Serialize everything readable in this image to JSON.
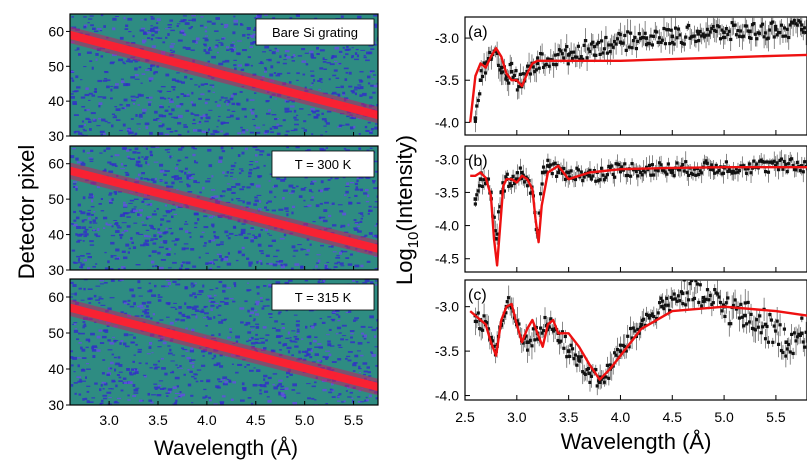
{
  "figure": {
    "left_ylabel": "Detector pixel",
    "left_xlabel": "Wavelength (Å)",
    "right_ylabel_main": "Log",
    "right_ylabel_sub": "10",
    "right_ylabel_rest": "(Intensity)",
    "right_xlabel": "Wavelength (Å)"
  },
  "colors": {
    "map_background": "#2e8c82",
    "map_noise": "#3030c8",
    "ridge": "#ff2030",
    "fit": "#ee1111",
    "data": "#111111"
  },
  "chart_data": [
    {
      "type": "heatmap",
      "label": "Bare Si grating",
      "xlim": [
        2.6,
        5.75
      ],
      "ylim": [
        30,
        65
      ],
      "xticks": [
        "3.0",
        "3.5",
        "4.0",
        "4.5",
        "5.0",
        "5.5"
      ],
      "yticks": [
        "30",
        "40",
        "50",
        "60"
      ],
      "ridge_x": [
        2.6,
        5.75
      ],
      "ridge_y": [
        59,
        36
      ]
    },
    {
      "type": "heatmap",
      "label": "T = 300 K",
      "xlim": [
        2.6,
        5.75
      ],
      "ylim": [
        30,
        65
      ],
      "xticks": [
        "3.0",
        "3.5",
        "4.0",
        "4.5",
        "5.0",
        "5.5"
      ],
      "yticks": [
        "30",
        "40",
        "50",
        "60"
      ],
      "ridge_x": [
        2.6,
        5.75
      ],
      "ridge_y": [
        58,
        36
      ]
    },
    {
      "type": "heatmap",
      "label": "T = 315 K",
      "xlim": [
        2.6,
        5.75
      ],
      "ylim": [
        30,
        65
      ],
      "xticks": [
        "3.0",
        "3.5",
        "4.0",
        "4.5",
        "5.0",
        "5.5"
      ],
      "yticks": [
        "30",
        "40",
        "50",
        "60"
      ],
      "ridge_x": [
        2.6,
        5.75
      ],
      "ridge_y": [
        57,
        35
      ]
    },
    {
      "type": "scatter",
      "label": "(a)",
      "xlim": [
        2.5,
        5.8
      ],
      "ylim": [
        -4.15,
        -2.75
      ],
      "yticks": [
        "-3.0",
        "-3.5",
        "-4.0"
      ],
      "data_x": [
        2.6,
        2.65,
        2.7,
        2.75,
        2.8,
        2.85,
        2.9,
        2.95,
        3.0,
        3.05,
        3.1,
        3.2,
        3.3,
        3.5,
        3.75,
        4.0,
        4.25,
        4.5,
        4.75,
        5.0,
        5.25,
        5.5,
        5.75
      ],
      "data_y": [
        -3.95,
        -3.5,
        -3.3,
        -3.25,
        -3.15,
        -3.35,
        -3.45,
        -3.4,
        -3.5,
        -3.55,
        -3.4,
        -3.3,
        -3.25,
        -3.2,
        -3.1,
        -3.05,
        -3.0,
        -2.98,
        -2.95,
        -2.93,
        -2.92,
        -2.9,
        -2.9
      ],
      "fit_x": [
        2.55,
        2.6,
        2.65,
        2.7,
        2.75,
        2.8,
        2.85,
        2.9,
        2.95,
        3.0,
        3.05,
        3.1,
        3.15,
        3.2,
        3.3,
        3.5,
        4.0,
        4.5,
        5.0,
        5.5,
        5.8
      ],
      "fit_y": [
        -4.0,
        -3.45,
        -3.3,
        -3.35,
        -3.22,
        -3.12,
        -3.22,
        -3.42,
        -3.5,
        -3.5,
        -3.57,
        -3.42,
        -3.3,
        -3.27,
        -3.27,
        -3.27,
        -3.27,
        -3.25,
        -3.23,
        -3.21,
        -3.2
      ]
    },
    {
      "type": "scatter",
      "label": "(b)",
      "xlim": [
        2.5,
        5.8
      ],
      "ylim": [
        -4.7,
        -2.8
      ],
      "yticks": [
        "-3.0",
        "-3.5",
        "-4.0",
        "-4.5"
      ],
      "data_x": [
        2.6,
        2.65,
        2.7,
        2.75,
        2.8,
        2.85,
        2.9,
        2.95,
        3.0,
        3.05,
        3.1,
        3.15,
        3.2,
        3.25,
        3.3,
        3.4,
        3.5,
        3.7,
        4.0,
        4.5,
        5.0,
        5.5,
        5.75
      ],
      "data_y": [
        -3.6,
        -3.3,
        -3.3,
        -3.5,
        -4.2,
        -3.5,
        -3.3,
        -3.3,
        -3.3,
        -3.2,
        -3.3,
        -3.5,
        -4.1,
        -3.2,
        -3.1,
        -3.2,
        -3.2,
        -3.25,
        -3.15,
        -3.15,
        -3.12,
        -3.1,
        -3.1
      ],
      "fit_x": [
        2.55,
        2.6,
        2.65,
        2.7,
        2.75,
        2.78,
        2.81,
        2.84,
        2.87,
        2.9,
        2.95,
        3.0,
        3.05,
        3.1,
        3.15,
        3.18,
        3.21,
        3.24,
        3.3,
        3.4,
        3.5,
        3.6,
        3.7,
        4.0,
        4.5,
        5.0,
        5.5,
        5.8
      ],
      "fit_y": [
        -3.25,
        -3.25,
        -3.2,
        -3.28,
        -3.55,
        -4.2,
        -4.6,
        -4.0,
        -3.4,
        -3.3,
        -3.3,
        -3.35,
        -3.25,
        -3.3,
        -3.45,
        -3.9,
        -4.25,
        -3.7,
        -3.2,
        -3.1,
        -3.3,
        -3.25,
        -3.2,
        -3.15,
        -3.13,
        -3.12,
        -3.12,
        -3.12
      ]
    },
    {
      "type": "scatter",
      "label": "(c)",
      "xlim": [
        2.5,
        5.8
      ],
      "ylim": [
        -4.05,
        -2.7
      ],
      "yticks": [
        "-3.0",
        "-3.5",
        "-4.0"
      ],
      "data_x": [
        2.6,
        2.65,
        2.7,
        2.75,
        2.8,
        2.85,
        2.9,
        2.95,
        3.0,
        3.1,
        3.2,
        3.3,
        3.4,
        3.5,
        3.6,
        3.7,
        3.8,
        3.9,
        4.0,
        4.2,
        4.4,
        4.6,
        4.8,
        5.0,
        5.2,
        5.4,
        5.6,
        5.75
      ],
      "data_y": [
        -3.1,
        -3.15,
        -3.2,
        -3.35,
        -3.5,
        -3.2,
        -3.0,
        -3.0,
        -3.2,
        -3.4,
        -3.3,
        -3.2,
        -3.3,
        -3.5,
        -3.6,
        -3.75,
        -3.85,
        -3.7,
        -3.5,
        -3.2,
        -3.0,
        -2.85,
        -2.9,
        -3.0,
        -3.1,
        -3.2,
        -3.4,
        -3.3
      ],
      "fit_x": [
        2.55,
        2.6,
        2.7,
        2.75,
        2.8,
        2.85,
        2.9,
        2.95,
        3.0,
        3.05,
        3.1,
        3.15,
        3.2,
        3.25,
        3.3,
        3.35,
        3.4,
        3.5,
        3.6,
        3.7,
        3.8,
        3.9,
        4.0,
        4.2,
        4.5,
        5.0,
        5.5,
        5.8
      ],
      "fit_y": [
        -3.05,
        -3.1,
        -3.2,
        -3.4,
        -3.55,
        -3.15,
        -3.0,
        -2.97,
        -3.2,
        -3.4,
        -3.25,
        -3.15,
        -3.3,
        -3.45,
        -3.2,
        -3.15,
        -3.3,
        -3.3,
        -3.45,
        -3.65,
        -3.82,
        -3.7,
        -3.55,
        -3.25,
        -3.05,
        -3.0,
        -3.05,
        -3.1
      ]
    }
  ],
  "right_xticks": [
    "2.5",
    "3.0",
    "3.5",
    "4.0",
    "4.5",
    "5.0",
    "5.5"
  ],
  "right_xtick_values": [
    2.5,
    3.0,
    3.5,
    4.0,
    4.5,
    5.0,
    5.5
  ],
  "left_xtick_values": [
    3.0,
    3.5,
    4.0,
    4.5,
    5.0,
    5.5
  ],
  "left_ytick_values": [
    30,
    40,
    50,
    60
  ]
}
